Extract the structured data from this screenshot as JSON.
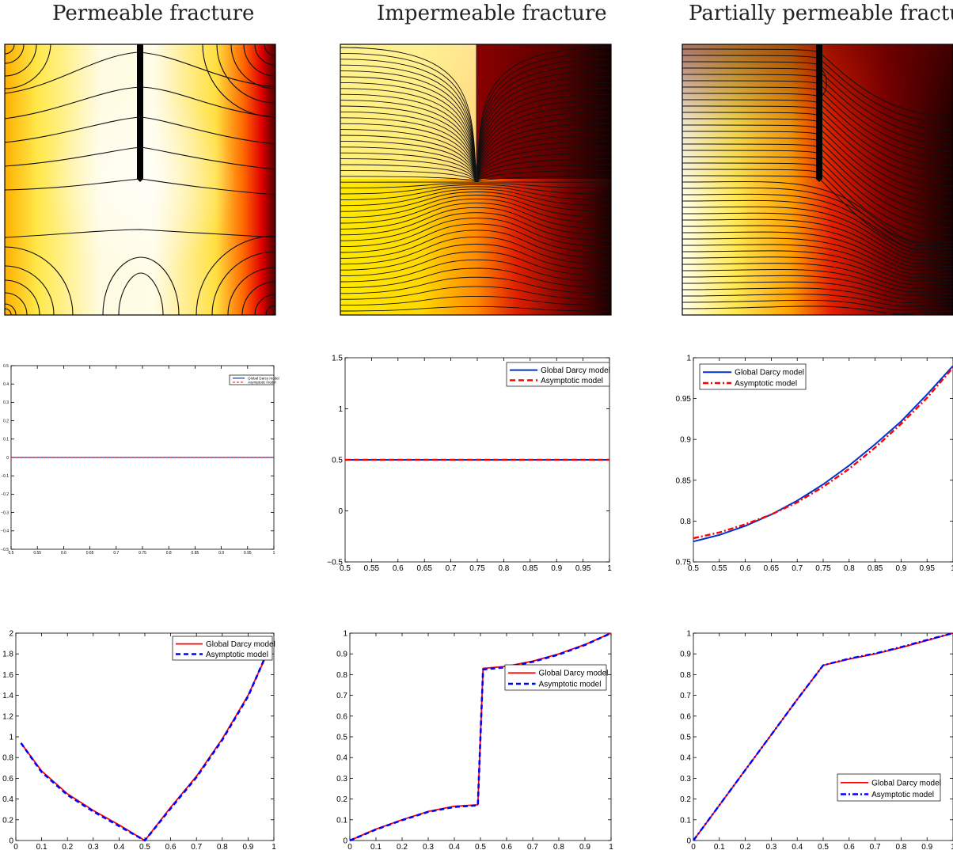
{
  "columns": [
    "Permeable fracture",
    "Impermeable fracture",
    "Partially permeable fracture"
  ],
  "colors": {
    "darcy_blue": "#0033cc",
    "asym_red": "#ff0000",
    "darcy_red": "#ff0000",
    "asym_blue": "#0000ff"
  },
  "chart_data": [
    {
      "type": "heatmap",
      "title": "Permeable fracture",
      "description_values": {
        "fracture_top": 1.0,
        "fracture_bottom": 0.55,
        "fracture_x": 0.5
      }
    },
    {
      "type": "heatmap",
      "title": "Impermeable fracture",
      "description_values": {
        "fracture_top": 1.0,
        "fracture_bottom": 0.55,
        "fracture_x": 0.5
      }
    },
    {
      "type": "heatmap",
      "title": "Partially permeable fracture",
      "description_values": {
        "fracture_top": 1.0,
        "fracture_bottom": 0.55,
        "fracture_x": 0.5
      }
    },
    {
      "type": "line",
      "xlim": [
        0.5,
        1
      ],
      "ylim": [
        -0.5,
        0.5
      ],
      "xticks": [
        "0.5",
        "0.55",
        "0.6",
        "0.65",
        "0.7",
        "0.75",
        "0.8",
        "0.85",
        "0.9",
        "0.95",
        "1"
      ],
      "yticks": [
        "−0.5",
        "−0.4",
        "−0.3",
        "−0.2",
        "−0.1",
        "0",
        "0.1",
        "0.2",
        "0.3",
        "0.4",
        "0.5"
      ],
      "series": [
        {
          "name": "Global Darcy model",
          "x": [
            0.5,
            1
          ],
          "y": [
            0,
            0
          ]
        },
        {
          "name": "Asymptotic model",
          "x": [
            0.5,
            1
          ],
          "y": [
            0,
            0
          ]
        }
      ]
    },
    {
      "type": "line",
      "xlim": [
        0.5,
        1
      ],
      "ylim": [
        -0.5,
        1.5
      ],
      "xticks": [
        "0.5",
        "0.55",
        "0.6",
        "0.65",
        "0.7",
        "0.75",
        "0.8",
        "0.85",
        "0.9",
        "0.95",
        "1"
      ],
      "yticks": [
        "−0.5",
        "0",
        "0.5",
        "1",
        "1.5"
      ],
      "series": [
        {
          "name": "Global Darcy model",
          "x": [
            0.5,
            1
          ],
          "y": [
            0.5,
            0.5
          ]
        },
        {
          "name": "Asymptotic model",
          "x": [
            0.5,
            1
          ],
          "y": [
            0.5,
            0.5
          ]
        }
      ]
    },
    {
      "type": "line",
      "xlim": [
        0.5,
        1
      ],
      "ylim": [
        0.75,
        1
      ],
      "xticks": [
        "0.5",
        "0.55",
        "0.6",
        "0.65",
        "0.7",
        "0.75",
        "0.8",
        "0.85",
        "0.9",
        "0.95",
        "1"
      ],
      "yticks": [
        "0.75",
        "0.8",
        "0.85",
        "0.9",
        "0.95",
        "1"
      ],
      "series": [
        {
          "name": "Global Darcy model",
          "x": [
            0.5,
            0.55,
            0.6,
            0.65,
            0.7,
            0.75,
            0.8,
            0.85,
            0.9,
            0.95,
            1.0
          ],
          "y": [
            0.775,
            0.783,
            0.794,
            0.808,
            0.825,
            0.845,
            0.868,
            0.894,
            0.922,
            0.955,
            0.99
          ]
        },
        {
          "name": "Asymptotic model",
          "x": [
            0.5,
            0.55,
            0.6,
            0.65,
            0.7,
            0.75,
            0.8,
            0.85,
            0.9,
            0.95,
            1.0
          ],
          "y": [
            0.779,
            0.786,
            0.796,
            0.808,
            0.823,
            0.842,
            0.864,
            0.89,
            0.919,
            0.951,
            0.988
          ]
        }
      ]
    },
    {
      "type": "line",
      "xlim": [
        0,
        1
      ],
      "ylim": [
        0,
        2
      ],
      "xticks": [
        "0",
        "0.1",
        "0.2",
        "0.3",
        "0.4",
        "0.5",
        "0.6",
        "0.7",
        "0.8",
        "0.9",
        "1"
      ],
      "yticks": [
        "0",
        "0.2",
        "0.4",
        "0.6",
        "0.8",
        "1",
        "1.2",
        "1.4",
        "1.6",
        "1.8",
        "2"
      ],
      "series": [
        {
          "name": "Global Darcy model",
          "x": [
            0.02,
            0.1,
            0.2,
            0.3,
            0.4,
            0.5,
            0.6,
            0.7,
            0.8,
            0.9,
            0.97
          ],
          "y": [
            0.94,
            0.67,
            0.45,
            0.29,
            0.15,
            0.0,
            0.32,
            0.62,
            0.98,
            1.4,
            1.78
          ]
        },
        {
          "name": "Asymptotic model",
          "x": [
            0.02,
            0.1,
            0.2,
            0.3,
            0.4,
            0.5,
            0.6,
            0.7,
            0.8,
            0.9,
            0.97
          ],
          "y": [
            0.94,
            0.66,
            0.44,
            0.28,
            0.14,
            0.0,
            0.31,
            0.61,
            0.97,
            1.39,
            1.79
          ]
        }
      ]
    },
    {
      "type": "line",
      "xlim": [
        0,
        1
      ],
      "ylim": [
        0,
        1
      ],
      "xticks": [
        "0",
        "0.1",
        "0.2",
        "0.3",
        "0.4",
        "0.5",
        "0.6",
        "0.7",
        "0.8",
        "0.9",
        "1"
      ],
      "yticks": [
        "0",
        "0.1",
        "0.2",
        "0.3",
        "0.4",
        "0.5",
        "0.6",
        "0.7",
        "0.8",
        "0.9",
        "1"
      ],
      "series": [
        {
          "name": "Global Darcy model",
          "x": [
            0,
            0.1,
            0.2,
            0.3,
            0.4,
            0.49,
            0.5,
            0.51,
            0.6,
            0.7,
            0.8,
            0.9,
            1.0
          ],
          "y": [
            0,
            0.055,
            0.1,
            0.14,
            0.165,
            0.172,
            0.5,
            0.83,
            0.84,
            0.865,
            0.9,
            0.945,
            1.0
          ]
        },
        {
          "name": "Asymptotic model",
          "x": [
            0,
            0.1,
            0.2,
            0.3,
            0.4,
            0.49,
            0.5,
            0.51,
            0.6,
            0.7,
            0.8,
            0.9,
            1.0
          ],
          "y": [
            0,
            0.053,
            0.098,
            0.138,
            0.162,
            0.17,
            0.5,
            0.825,
            0.836,
            0.862,
            0.897,
            0.943,
            1.0
          ]
        }
      ]
    },
    {
      "type": "line",
      "xlim": [
        0,
        1
      ],
      "ylim": [
        0,
        1
      ],
      "xticks": [
        "0",
        "0.1",
        "0.2",
        "0.3",
        "0.4",
        "0.5",
        "0.6",
        "0.7",
        "0.8",
        "0.9",
        "1"
      ],
      "yticks": [
        "0",
        "0.1",
        "0.2",
        "0.3",
        "0.4",
        "0.5",
        "0.6",
        "0.7",
        "0.8",
        "0.9",
        "1"
      ],
      "series": [
        {
          "name": "Global Darcy model",
          "x": [
            0,
            0.1,
            0.2,
            0.3,
            0.4,
            0.5,
            0.6,
            0.7,
            0.8,
            0.9,
            1.0
          ],
          "y": [
            0,
            0.17,
            0.34,
            0.51,
            0.68,
            0.845,
            0.875,
            0.9,
            0.93,
            0.965,
            1.0
          ]
        },
        {
          "name": "Asymptotic model",
          "x": [
            0,
            0.1,
            0.2,
            0.3,
            0.4,
            0.5,
            0.6,
            0.7,
            0.8,
            0.9,
            1.0
          ],
          "y": [
            0,
            0.17,
            0.34,
            0.51,
            0.68,
            0.845,
            0.877,
            0.902,
            0.933,
            0.967,
            1.0
          ]
        }
      ]
    }
  ]
}
